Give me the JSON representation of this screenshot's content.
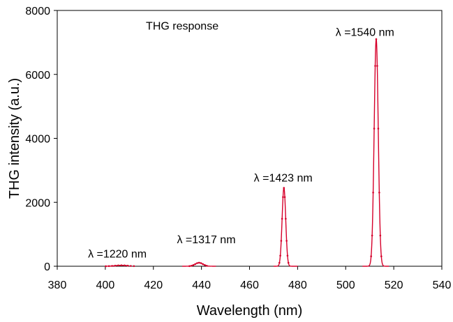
{
  "chart_data": {
    "type": "line",
    "title": "",
    "xlabel": "Wavelength (nm)",
    "ylabel": "THG intensity (a.u.)",
    "xlim": [
      380,
      540
    ],
    "ylim": [
      0,
      8000
    ],
    "x_ticks": [
      380,
      400,
      420,
      440,
      460,
      480,
      500,
      520,
      540
    ],
    "y_ticks": [
      0,
      2000,
      4000,
      6000,
      8000
    ],
    "grid": false,
    "legend": "none",
    "line_color": "#d6002a",
    "series": [
      {
        "peaks": [
          {
            "center": 406.7,
            "height": 30,
            "sigma": 2.6,
            "range": [
              400,
              410
            ]
          },
          {
            "center": 439.0,
            "height": 110,
            "sigma": 1.6,
            "range": [
              432,
              446
            ]
          },
          {
            "center": 474.3,
            "height": 2450,
            "sigma": 0.75,
            "range": [
              470,
              480
            ]
          },
          {
            "center": 512.7,
            "height": 7100,
            "sigma": 0.85,
            "range": [
              507,
              518
            ]
          }
        ]
      }
    ],
    "annotations": [
      {
        "text": "THG response",
        "x": 432,
        "y": 7400
      },
      {
        "text": "λ =1540 nm",
        "x": 508,
        "y": 7200
      },
      {
        "text": "λ =1423 nm",
        "x": 474,
        "y": 2650
      },
      {
        "text": "λ =1317 nm",
        "x": 442,
        "y": 720
      },
      {
        "text": "λ =1220 nm",
        "x": 405,
        "y": 270
      }
    ]
  }
}
